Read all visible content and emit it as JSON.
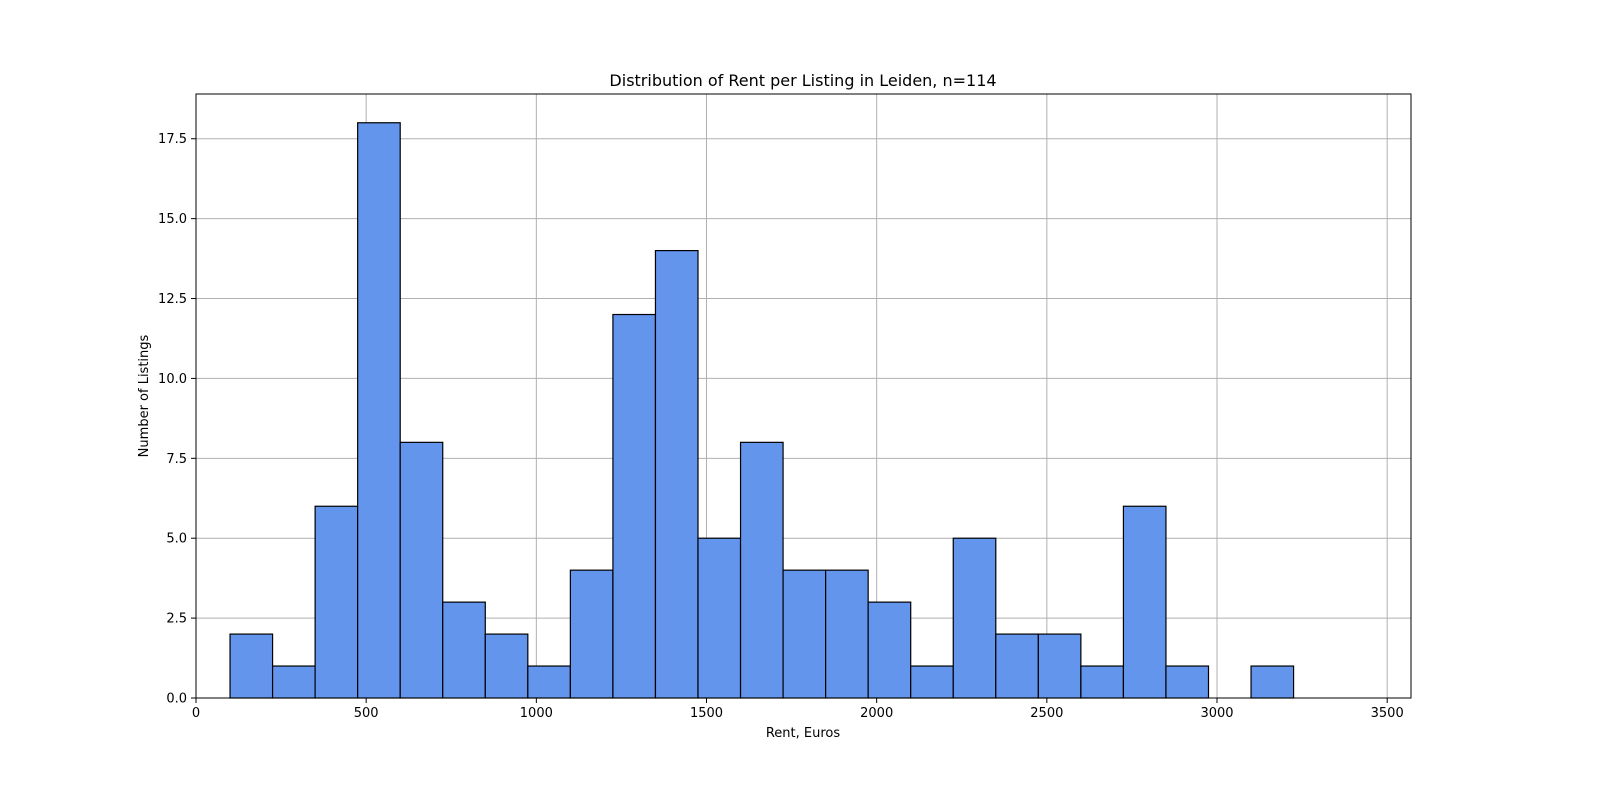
{
  "chart_data": {
    "type": "bar",
    "title": "Distribution of Rent per Listing in Leiden, n=114",
    "xlabel": "Rent, Euros",
    "ylabel": "Number of Listings",
    "xlim": [
      0,
      3570
    ],
    "ylim": [
      0,
      18.9
    ],
    "x_ticks": [
      0,
      500,
      1000,
      1500,
      2000,
      2500,
      3000,
      3500
    ],
    "x_tick_labels": [
      "0",
      "500",
      "1000",
      "1500",
      "2000",
      "2500",
      "3000",
      "3500"
    ],
    "y_ticks": [
      0,
      2.5,
      5,
      7.5,
      10,
      12.5,
      15,
      17.5
    ],
    "y_tick_labels": [
      "0.0",
      "2.5",
      "5.0",
      "7.5",
      "10.0",
      "12.5",
      "15.0",
      "17.5"
    ],
    "grid": true,
    "bin_edges": [
      100,
      225,
      350,
      475,
      600,
      725,
      850,
      975,
      1100,
      1225,
      1350,
      1475,
      1600,
      1725,
      1850,
      1975,
      2100,
      2225,
      2350,
      2475,
      2600,
      2725,
      2850,
      2975,
      3100,
      3225
    ],
    "values": [
      2,
      1,
      6,
      18,
      8,
      3,
      2,
      1,
      4,
      12,
      14,
      5,
      8,
      4,
      4,
      3,
      1,
      5,
      2,
      2,
      1,
      6,
      1,
      0,
      1
    ],
    "bar_color": "#6495ED",
    "edge_color": "#000000"
  }
}
